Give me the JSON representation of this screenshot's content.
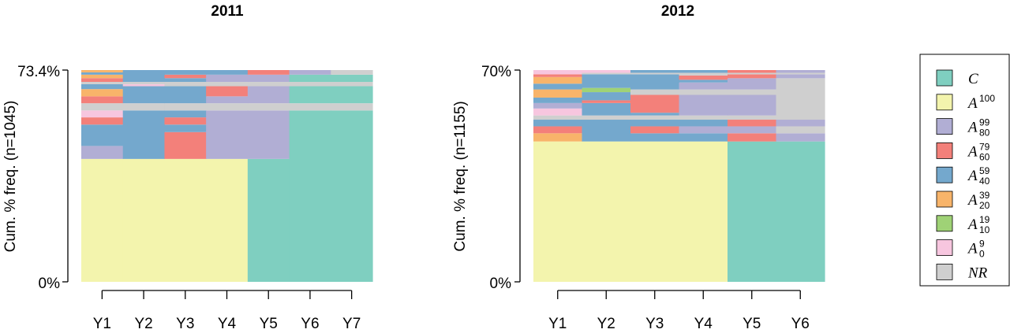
{
  "colors": {
    "C": "#7fcfc0",
    "A100": "#f3f4ad",
    "A80_99": "#b1aed4",
    "A60_79": "#f3807a",
    "A40_59": "#74a8cd",
    "A20_39": "#f8b46a",
    "A10_19": "#9fd276",
    "A0_9": "#f7c6df",
    "NR": "#cfcfcf"
  },
  "legend": [
    {
      "key": "C",
      "base": "C",
      "sup": "",
      "sub": ""
    },
    {
      "key": "A100",
      "base": "A",
      "sup": "100",
      "sub": ""
    },
    {
      "key": "A80_99",
      "base": "A",
      "sup": "99",
      "sub": "80"
    },
    {
      "key": "A60_79",
      "base": "A",
      "sup": "79",
      "sub": "60"
    },
    {
      "key": "A40_59",
      "base": "A",
      "sup": "59",
      "sub": "40"
    },
    {
      "key": "A20_39",
      "base": "A",
      "sup": "39",
      "sub": "20"
    },
    {
      "key": "A10_19",
      "base": "A",
      "sup": "19",
      "sub": "10"
    },
    {
      "key": "A0_9",
      "base": "A",
      "sup": "9",
      "sub": "0"
    },
    {
      "key": "NR",
      "base": "NR",
      "sup": "",
      "sub": ""
    }
  ],
  "chart_data": [
    {
      "type": "heatmap",
      "title": "2011",
      "ylabel": "Cum. % freq. (n=1045)",
      "ymax_label": "73.4%",
      "ymin_label": "0%",
      "ylim": [
        0,
        73.4
      ],
      "categories": [
        "Y1",
        "Y2",
        "Y3",
        "Y4",
        "Y5",
        "Y6",
        "Y7"
      ],
      "columns": [
        [
          [
            "A100",
            0,
            42.6
          ],
          [
            "A80_99",
            42.6,
            47.1
          ],
          [
            "A40_59",
            47.1,
            54.5
          ],
          [
            "A60_79",
            54.5,
            57.0
          ],
          [
            "A0_9",
            57.0,
            59.4
          ],
          [
            "NR",
            59.4,
            61.9
          ],
          [
            "A60_79",
            61.9,
            64.3
          ],
          [
            "A20_39",
            64.3,
            66.8
          ],
          [
            "A40_59",
            66.8,
            68.5
          ],
          [
            "NR",
            68.5,
            69.3
          ],
          [
            "A60_79",
            69.3,
            70.6
          ],
          [
            "A20_39",
            70.6,
            71.8
          ],
          [
            "A40_59",
            71.8,
            72.6
          ],
          [
            "A20_39",
            72.6,
            73.4
          ]
        ],
        [
          [
            "A100",
            0,
            42.6
          ],
          [
            "A40_59",
            42.6,
            59.4
          ],
          [
            "NR",
            59.4,
            61.9
          ],
          [
            "A40_59",
            61.9,
            67.8
          ],
          [
            "A0_9",
            67.8,
            68.5
          ],
          [
            "NR",
            68.5,
            69.3
          ],
          [
            "A40_59",
            69.3,
            73.4
          ]
        ],
        [
          [
            "A100",
            0,
            42.6
          ],
          [
            "A60_79",
            42.6,
            51.9
          ],
          [
            "A40_59",
            51.9,
            54.5
          ],
          [
            "A60_79",
            54.5,
            57.0
          ],
          [
            "A40_59",
            57.0,
            59.4
          ],
          [
            "NR",
            59.4,
            61.9
          ],
          [
            "A40_59",
            61.9,
            67.8
          ],
          [
            "NR",
            67.8,
            69.3
          ],
          [
            "A40_59",
            69.3,
            70.6
          ],
          [
            "A60_79",
            70.6,
            71.8
          ],
          [
            "A40_59",
            71.8,
            73.4
          ]
        ],
        [
          [
            "A100",
            0,
            42.6
          ],
          [
            "A80_99",
            42.6,
            59.4
          ],
          [
            "NR",
            59.4,
            61.9
          ],
          [
            "A80_99",
            61.9,
            64.3
          ],
          [
            "A60_79",
            64.3,
            67.8
          ],
          [
            "NR",
            67.8,
            69.3
          ],
          [
            "A80_99",
            69.3,
            71.8
          ],
          [
            "A40_59",
            71.8,
            73.4
          ]
        ],
        [
          [
            "C",
            0,
            42.6
          ],
          [
            "A80_99",
            42.6,
            59.4
          ],
          [
            "NR",
            59.4,
            61.9
          ],
          [
            "A80_99",
            61.9,
            67.8
          ],
          [
            "NR",
            67.8,
            69.3
          ],
          [
            "A80_99",
            69.3,
            71.8
          ],
          [
            "A60_79",
            71.8,
            73.4
          ]
        ],
        [
          [
            "C",
            0,
            59.4
          ],
          [
            "NR",
            59.4,
            61.9
          ],
          [
            "C",
            61.9,
            67.8
          ],
          [
            "NR",
            67.8,
            69.3
          ],
          [
            "C",
            69.3,
            71.8
          ],
          [
            "A80_99",
            71.8,
            73.4
          ]
        ],
        [
          [
            "C",
            0,
            59.4
          ],
          [
            "NR",
            59.4,
            61.9
          ],
          [
            "C",
            61.9,
            67.8
          ],
          [
            "NR",
            67.8,
            69.3
          ],
          [
            "C",
            69.3,
            71.8
          ],
          [
            "NR",
            71.8,
            73.4
          ]
        ]
      ]
    },
    {
      "type": "heatmap",
      "title": "2012",
      "ylabel": "Cum. % freq. (n=1155)",
      "ymax_label": "70%",
      "ymin_label": "0%",
      "ylim": [
        0,
        70
      ],
      "categories": [
        "Y1",
        "Y2",
        "Y3",
        "Y4",
        "Y5",
        "Y6"
      ],
      "columns": [
        [
          [
            "A100",
            0,
            46.4
          ],
          [
            "A20_39",
            46.4,
            49.1
          ],
          [
            "A60_79",
            49.1,
            51.4
          ],
          [
            "A40_59",
            51.4,
            53.6
          ],
          [
            "NR",
            53.6,
            55.0
          ],
          [
            "A0_9",
            55.0,
            57.3
          ],
          [
            "A80_99",
            57.3,
            59.1
          ],
          [
            "A40_59",
            59.1,
            60.9
          ],
          [
            "A20_39",
            60.9,
            63.6
          ],
          [
            "A40_59",
            63.6,
            65.5
          ],
          [
            "A20_39",
            65.5,
            67.7
          ],
          [
            "A60_79",
            67.7,
            68.6
          ],
          [
            "A0_9",
            68.6,
            70.0
          ]
        ],
        [
          [
            "A100",
            0,
            46.4
          ],
          [
            "A40_59",
            46.4,
            53.6
          ],
          [
            "NR",
            53.6,
            55.0
          ],
          [
            "A40_59",
            55.0,
            59.1
          ],
          [
            "A60_79",
            59.1,
            60.0
          ],
          [
            "A40_59",
            60.0,
            62.7
          ],
          [
            "A10_19",
            62.7,
            64.1
          ],
          [
            "A40_59",
            64.1,
            68.6
          ],
          [
            "NR",
            68.6,
            69.1
          ],
          [
            "A0_9",
            69.1,
            70.0
          ]
        ],
        [
          [
            "A100",
            0,
            46.4
          ],
          [
            "A40_59",
            46.4,
            49.1
          ],
          [
            "A60_79",
            49.1,
            51.4
          ],
          [
            "A40_59",
            51.4,
            53.6
          ],
          [
            "NR",
            53.6,
            55.0
          ],
          [
            "A40_59",
            55.0,
            55.9
          ],
          [
            "A60_79",
            55.9,
            61.8
          ],
          [
            "NR",
            61.8,
            63.6
          ],
          [
            "A40_59",
            63.6,
            68.6
          ],
          [
            "NR",
            68.6,
            69.1
          ],
          [
            "A40_59",
            69.1,
            70.0
          ]
        ],
        [
          [
            "A100",
            0,
            46.4
          ],
          [
            "A40_59",
            46.4,
            49.1
          ],
          [
            "A80_99",
            49.1,
            51.4
          ],
          [
            "A40_59",
            51.4,
            53.6
          ],
          [
            "NR",
            53.6,
            55.0
          ],
          [
            "A80_99",
            55.0,
            61.8
          ],
          [
            "NR",
            61.8,
            63.6
          ],
          [
            "A80_99",
            63.6,
            65.9
          ],
          [
            "A40_59",
            65.9,
            66.8
          ],
          [
            "A60_79",
            66.8,
            68.2
          ],
          [
            "NR",
            68.2,
            69.1
          ],
          [
            "A40_59",
            69.1,
            70.0
          ]
        ],
        [
          [
            "C",
            0,
            46.4
          ],
          [
            "A60_79",
            46.4,
            49.1
          ],
          [
            "A80_99",
            49.1,
            51.4
          ],
          [
            "A60_79",
            51.4,
            53.6
          ],
          [
            "NR",
            53.6,
            55.0
          ],
          [
            "A80_99",
            55.0,
            61.8
          ],
          [
            "NR",
            61.8,
            63.6
          ],
          [
            "A80_99",
            63.6,
            67.3
          ],
          [
            "A60_79",
            67.3,
            68.6
          ],
          [
            "NR",
            68.6,
            69.1
          ],
          [
            "A60_79",
            69.1,
            70.0
          ]
        ],
        [
          [
            "C",
            0,
            46.4
          ],
          [
            "A80_99",
            46.4,
            49.1
          ],
          [
            "NR",
            49.1,
            51.4
          ],
          [
            "A80_99",
            51.4,
            53.6
          ],
          [
            "NR",
            53.6,
            67.3
          ],
          [
            "A80_99",
            67.3,
            68.6
          ],
          [
            "NR",
            68.6,
            69.1
          ],
          [
            "A80_99",
            69.1,
            70.0
          ]
        ]
      ]
    }
  ]
}
